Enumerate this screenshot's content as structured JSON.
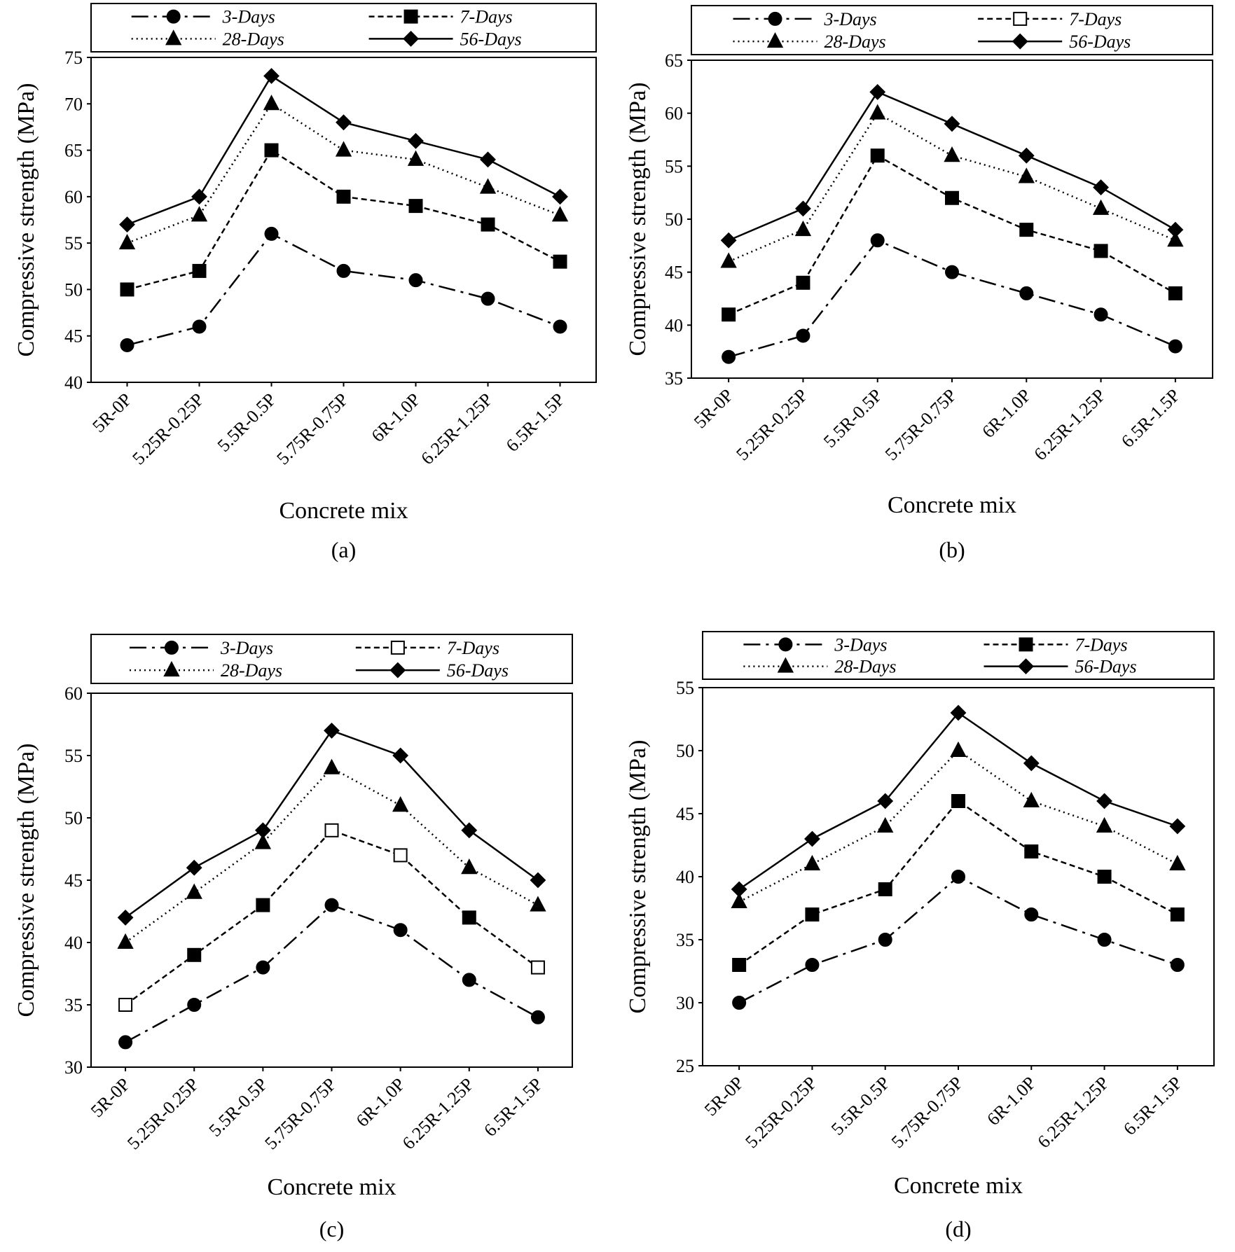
{
  "chart_data": [
    {
      "type": "line",
      "panel_label": "(a)",
      "xlabel": "Concrete mix",
      "ylabel": "Compressive strength (MPa)",
      "ylim": [
        40,
        75
      ],
      "yticks": [
        40,
        45,
        50,
        55,
        60,
        65,
        70,
        75
      ],
      "categories": [
        "5R-0P",
        "5.25R-0.25P",
        "5.5R-0.5P",
        "5.75R-0.75P",
        "6R-1.0P",
        "6.25R-1.25P",
        "6.5R-1.5P"
      ],
      "legend_position": "top",
      "series": [
        {
          "name": "3-Days",
          "values": [
            44,
            46,
            56,
            52,
            51,
            49,
            46
          ],
          "marker": "circle",
          "line": "dash-dot"
        },
        {
          "name": "7-Days",
          "values": [
            50,
            52,
            65,
            60,
            59,
            57,
            53
          ],
          "marker": "square",
          "line": "dashed"
        },
        {
          "name": "28-Days",
          "values": [
            55,
            58,
            70,
            65,
            64,
            61,
            58
          ],
          "marker": "triangle",
          "line": "dotted"
        },
        {
          "name": "56-Days",
          "values": [
            57,
            60,
            73,
            68,
            66,
            64,
            60
          ],
          "marker": "diamond",
          "line": "solid"
        }
      ]
    },
    {
      "type": "line",
      "panel_label": "(b)",
      "xlabel": "Concrete mix",
      "ylabel": "Compressive strength (MPa)",
      "ylim": [
        35,
        65
      ],
      "yticks": [
        35,
        40,
        45,
        50,
        55,
        60,
        65
      ],
      "categories": [
        "5R-0P",
        "5.25R-0.25P",
        "5.5R-0.5P",
        "5.75R-0.75P",
        "6R-1.0P",
        "6.25R-1.25P",
        "6.5R-1.5P"
      ],
      "legend_position": "top",
      "series": [
        {
          "name": "3-Days",
          "values": [
            37,
            39,
            48,
            45,
            43,
            41,
            38
          ],
          "marker": "circle",
          "line": "dash-dot"
        },
        {
          "name": "7-Days",
          "values": [
            41,
            44,
            56,
            52,
            49,
            47,
            43
          ],
          "marker": "square",
          "line": "dashed",
          "legend_marker": "square-open"
        },
        {
          "name": "28-Days",
          "values": [
            46,
            49,
            60,
            56,
            54,
            51,
            48
          ],
          "marker": "triangle",
          "line": "dotted"
        },
        {
          "name": "56-Days",
          "values": [
            48,
            51,
            62,
            59,
            56,
            53,
            49
          ],
          "marker": "diamond",
          "line": "solid"
        }
      ]
    },
    {
      "type": "line",
      "panel_label": "(c)",
      "xlabel": "Concrete mix",
      "ylabel": "Compressive strength (MPa)",
      "ylim": [
        30,
        60
      ],
      "yticks": [
        30,
        35,
        40,
        45,
        50,
        55,
        60
      ],
      "categories": [
        "5R-0P",
        "5.25R-0.25P",
        "5.5R-0.5P",
        "5.75R-0.75P",
        "6R-1.0P",
        "6.25R-1.25P",
        "6.5R-1.5P"
      ],
      "legend_position": "top",
      "series": [
        {
          "name": "3-Days",
          "values": [
            32,
            35,
            38,
            43,
            41,
            37,
            34
          ],
          "marker": "circle",
          "line": "dash-dot"
        },
        {
          "name": "7-Days",
          "values": [
            35,
            39,
            43,
            49,
            47,
            42,
            38
          ],
          "marker": "square-mixed",
          "open_points": [
            0,
            3,
            4,
            6
          ],
          "line": "dashed",
          "legend_marker": "square-open"
        },
        {
          "name": "28-Days",
          "values": [
            40,
            44,
            48,
            54,
            51,
            46,
            43
          ],
          "marker": "triangle",
          "line": "dotted"
        },
        {
          "name": "56-Days",
          "values": [
            42,
            46,
            49,
            57,
            55,
            49,
            45
          ],
          "marker": "diamond",
          "line": "solid"
        }
      ]
    },
    {
      "type": "line",
      "panel_label": "(d)",
      "xlabel": "Concrete mix",
      "ylabel": "Compressive strength (MPa)",
      "ylim": [
        25,
        55
      ],
      "yticks": [
        25,
        30,
        35,
        40,
        45,
        50,
        55
      ],
      "categories": [
        "5R-0P",
        "5.25R-0.25P",
        "5.5R-0.5P",
        "5.75R-0.75P",
        "6R-1.0P",
        "6.25R-1.25P",
        "6.5R-1.5P"
      ],
      "legend_position": "top",
      "series": [
        {
          "name": "3-Days",
          "values": [
            30,
            33,
            35,
            40,
            37,
            35,
            33
          ],
          "marker": "circle",
          "line": "dash-dot"
        },
        {
          "name": "7-Days",
          "values": [
            33,
            37,
            39,
            46,
            42,
            40,
            37
          ],
          "marker": "square",
          "line": "dashed"
        },
        {
          "name": "28-Days",
          "values": [
            38,
            41,
            44,
            50,
            46,
            44,
            41
          ],
          "marker": "triangle",
          "line": "dotted"
        },
        {
          "name": "56-Days",
          "values": [
            39,
            43,
            46,
            53,
            49,
            46,
            44
          ],
          "marker": "diamond",
          "line": "solid"
        }
      ]
    }
  ]
}
